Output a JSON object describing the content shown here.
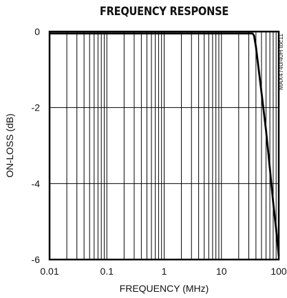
{
  "chart_data": {
    "type": "line",
    "title": "FREQUENCY RESPONSE",
    "xlabel": "FREQUENCY (MHz)",
    "ylabel": "ON-LOSS (dB)",
    "annotation": "MAX4740/40H toc11",
    "x_scale": "log",
    "xlim": [
      0.01,
      100
    ],
    "ylim": [
      -6,
      0
    ],
    "x_ticks": [
      0.01,
      0.1,
      1,
      10,
      100
    ],
    "x_tick_labels": [
      "0.01",
      "0.1",
      "1",
      "10",
      "100"
    ],
    "y_ticks": [
      0,
      -2,
      -4,
      -6
    ],
    "y_tick_labels": [
      "0",
      "-2",
      "-4",
      "-6"
    ],
    "grid": true,
    "series": [
      {
        "x": [
          0.01,
          0.1,
          1,
          10,
          30,
          35,
          37,
          40,
          50,
          60,
          70,
          80,
          90,
          100
        ],
        "y": [
          -0.05,
          -0.05,
          -0.05,
          -0.05,
          -0.05,
          -0.05,
          -0.1,
          -0.4,
          -1.6,
          -2.6,
          -3.6,
          -4.5,
          -5.2,
          -5.9
        ]
      }
    ]
  }
}
